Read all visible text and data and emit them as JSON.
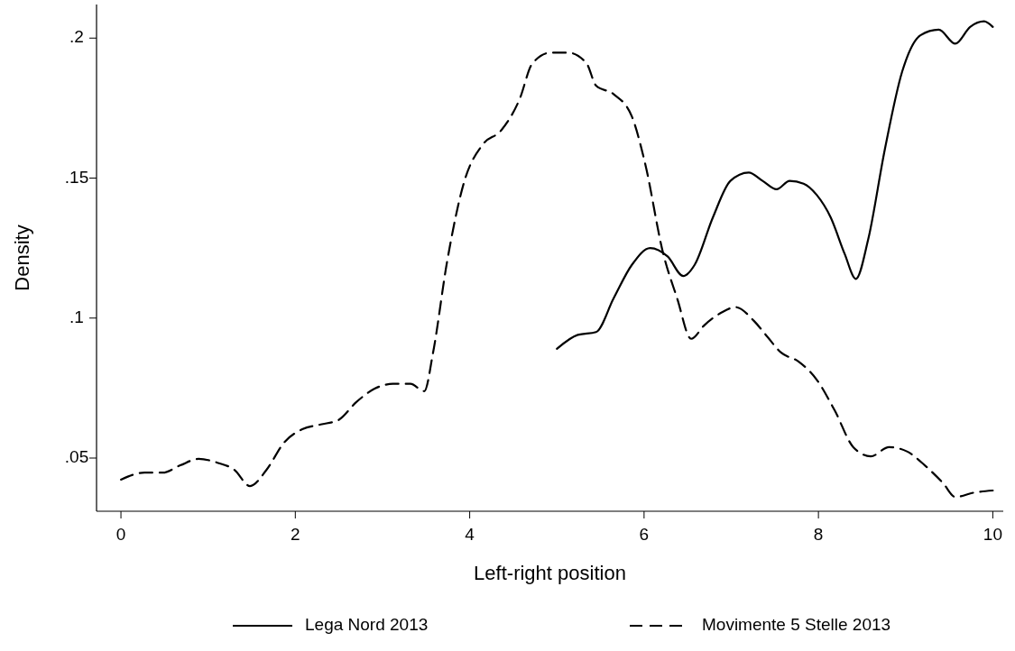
{
  "chart_data": {
    "type": "line",
    "xlabel": "Left-right position",
    "ylabel": "Density",
    "xlim": [
      -0.28,
      10.12
    ],
    "ylim": [
      0.031,
      0.212
    ],
    "xticks": [
      0,
      2,
      4,
      6,
      8,
      10
    ],
    "yticks": [
      {
        "value": 0.05,
        "label": ".05"
      },
      {
        "value": 0.1,
        "label": ".1"
      },
      {
        "value": 0.15,
        "label": ".15"
      },
      {
        "value": 0.2,
        "label": ".2"
      }
    ],
    "grid": false,
    "legend": "bottom",
    "series": [
      {
        "name": "Lega Nord 2013",
        "color": "#000000",
        "line_style": "solid",
        "x": [
          5.0,
          5.24,
          5.45,
          5.65,
          5.86,
          6.07,
          6.27,
          6.45,
          6.58,
          6.79,
          6.99,
          7.2,
          7.36,
          7.52,
          7.67,
          7.83,
          7.98,
          8.14,
          8.3,
          8.43,
          8.57,
          8.76,
          8.96,
          9.17,
          9.38,
          9.57,
          9.74,
          9.9,
          10.0
        ],
        "values": [
          0.089,
          0.094,
          0.095,
          0.107,
          0.119,
          0.125,
          0.122,
          0.115,
          0.119,
          0.136,
          0.149,
          0.152,
          0.149,
          0.146,
          0.149,
          0.148,
          0.144,
          0.136,
          0.123,
          0.114,
          0.128,
          0.16,
          0.188,
          0.201,
          0.203,
          0.198,
          0.204,
          0.206,
          0.204
        ]
      },
      {
        "name": "Movimente 5 Stelle 2013",
        "color": "#000000",
        "line_style": "dashed",
        "x": [
          0,
          0.27,
          0.48,
          0.68,
          0.89,
          1.1,
          1.3,
          1.48,
          1.67,
          1.87,
          2.08,
          2.29,
          2.49,
          2.7,
          2.91,
          3.12,
          3.32,
          3.48,
          3.58,
          3.74,
          3.94,
          4.15,
          4.36,
          4.57,
          4.72,
          4.93,
          5.13,
          5.34,
          5.45,
          5.65,
          5.86,
          6.01,
          6.22,
          6.38,
          6.54,
          6.69,
          6.89,
          7.05,
          7.26,
          7.41,
          7.57,
          7.77,
          7.98,
          8.19,
          8.4,
          8.6,
          8.81,
          9.02,
          9.22,
          9.43,
          9.57,
          9.79,
          10.0
        ],
        "values": [
          0.0423,
          0.0448,
          0.0448,
          0.0474,
          0.0497,
          0.0484,
          0.0458,
          0.04,
          0.0458,
          0.0555,
          0.0603,
          0.062,
          0.0635,
          0.07,
          0.0748,
          0.0765,
          0.0765,
          0.0739,
          0.0877,
          0.12,
          0.149,
          0.162,
          0.167,
          0.178,
          0.191,
          0.1948,
          0.1948,
          0.191,
          0.183,
          0.18,
          0.172,
          0.1555,
          0.123,
          0.107,
          0.0926,
          0.0974,
          0.102,
          0.1039,
          0.099,
          0.0935,
          0.0877,
          0.0845,
          0.078,
          0.0668,
          0.0539,
          0.0506,
          0.0539,
          0.0523,
          0.0474,
          0.041,
          0.0361,
          0.0377,
          0.0384
        ]
      }
    ]
  }
}
